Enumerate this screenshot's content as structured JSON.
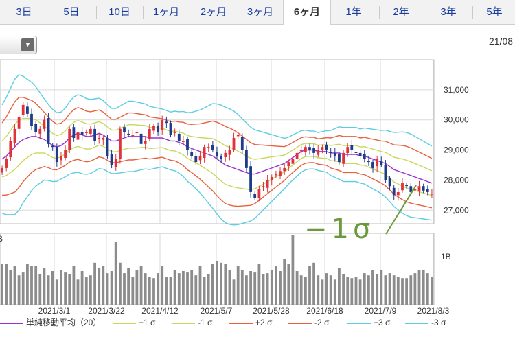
{
  "tabs": [
    {
      "label": "3日",
      "active": false
    },
    {
      "label": "5日",
      "active": false
    },
    {
      "label": "10日",
      "active": false
    },
    {
      "label": "1ヶ月",
      "active": false
    },
    {
      "label": "2ヶ月",
      "active": false
    },
    {
      "label": "3ヶ月",
      "active": false
    },
    {
      "label": "6ヶ月",
      "active": true
    },
    {
      "label": "1年",
      "active": false
    },
    {
      "label": "2年",
      "active": false
    },
    {
      "label": "3年",
      "active": false
    },
    {
      "label": "5年",
      "active": false
    }
  ],
  "header_date": "21/08",
  "annotation": "−1σ",
  "colors": {
    "up": "#e0323a",
    "down": "#1e3c8c",
    "sma": "#9b30d0",
    "sigma1": "#c9d85a",
    "sigma2": "#e8603c",
    "sigma3": "#5ccde0",
    "volume": "#8c8c8c",
    "annotation": "#6a9a3c"
  },
  "chart_data": {
    "type": "candlestick",
    "x_labels": [
      "2021/3/1",
      "2021/3/22",
      "2021/4/12",
      "2021/5/7",
      "2021/5/28",
      "2021/6/18",
      "2021/7/9",
      "2021/8/3"
    ],
    "y_ticks": [
      "31,000",
      "30,000",
      "29,000",
      "28,000",
      "27,000"
    ],
    "y_tick_values": [
      31000,
      30000,
      29000,
      28000,
      27000
    ],
    "ylim": [
      26550,
      32000
    ],
    "volume_tick": "1B",
    "volume_tick_top": "B",
    "legend": [
      {
        "label": "単純移動平均（20）",
        "color": "#9b30d0"
      },
      {
        "label": "+1 σ",
        "color": "#c9d85a"
      },
      {
        "label": "-1 σ",
        "color": "#c9d85a"
      },
      {
        "label": "+2 σ",
        "color": "#e8603c"
      },
      {
        "label": "-2 σ",
        "color": "#e8603c"
      },
      {
        "label": "+3 σ",
        "color": "#5ccde0"
      },
      {
        "label": "-3 σ",
        "color": "#5ccde0"
      }
    ],
    "close": [
      28400,
      28700,
      29300,
      29700,
      30100,
      30500,
      30200,
      29800,
      29600,
      29700,
      30000,
      29200,
      29100,
      28600,
      28800,
      29000,
      29700,
      29400,
      29600,
      29500,
      29600,
      29700,
      29300,
      29400,
      29400,
      28800,
      28500,
      28700,
      29700,
      29600,
      29500,
      29500,
      29600,
      29200,
      29300,
      29700,
      29800,
      29600,
      30000,
      29900,
      29500,
      29600,
      29300,
      29300,
      29000,
      28800,
      28600,
      28800,
      29100,
      29100,
      29000,
      28800,
      28700,
      28900,
      29000,
      29400,
      29500,
      29000,
      28400,
      27600,
      27400,
      27700,
      27800,
      28000,
      28100,
      28200,
      28300,
      28400,
      28600,
      28700,
      28900,
      29000,
      29100,
      29000,
      28900,
      29000,
      29100,
      29000,
      28900,
      28800,
      28600,
      28900,
      29100,
      29000,
      28900,
      28800,
      28700,
      28600,
      28400,
      28700,
      28500,
      28000,
      27800,
      27500,
      27600,
      27900,
      27800,
      27600,
      27700,
      27800,
      27650,
      27600,
      27550
    ],
    "sma": [
      28700,
      28800,
      28950,
      29100,
      29250,
      29350,
      29400,
      29450,
      29450,
      29400,
      29350,
      29250,
      29150,
      29100,
      29150,
      29250,
      29400,
      29500,
      29550,
      29500,
      29450,
      29450,
      29500,
      29550,
      29500,
      29400,
      29300,
      29300,
      29350,
      29400,
      29450,
      29450,
      29450,
      29450,
      29450,
      29400,
      29400,
      29400,
      29400,
      29350,
      29300,
      29300,
      29250,
      29200,
      29100,
      29050,
      29000,
      28950,
      28900,
      28850,
      28800,
      28700,
      28600,
      28500,
      28450,
      28400,
      28350,
      28300,
      28250,
      28200,
      28200,
      28250,
      28300,
      28350,
      28400,
      28450,
      28500,
      28550,
      28650,
      28750,
      28850,
      28950,
      29000,
      29000,
      29000,
      28950,
      28950,
      28950,
      28900,
      28900,
      28900,
      28850,
      28850,
      28850,
      28850,
      28800,
      28800,
      28750,
      28700,
      28650,
      28600,
      28550,
      28450,
      28350,
      28300,
      28250,
      28200,
      28150,
      28100,
      28050,
      28000,
      27950,
      27900
    ],
    "sigma": [
      600,
      650,
      700,
      750,
      750,
      700,
      650,
      600,
      550,
      500,
      450,
      420,
      400,
      380,
      370,
      380,
      400,
      420,
      430,
      430,
      420,
      410,
      400,
      390,
      380,
      370,
      360,
      360,
      370,
      380,
      390,
      390,
      380,
      370,
      360,
      350,
      340,
      330,
      320,
      320,
      320,
      330,
      340,
      360,
      380,
      400,
      430,
      460,
      500,
      540,
      580,
      610,
      630,
      640,
      640,
      630,
      610,
      580,
      550,
      520,
      490,
      460,
      430,
      400,
      370,
      340,
      310,
      280,
      260,
      250,
      240,
      230,
      220,
      210,
      210,
      210,
      220,
      230,
      250,
      270,
      290,
      300,
      300,
      300,
      300,
      300,
      310,
      320,
      330,
      340,
      350,
      370,
      390,
      410,
      430,
      450,
      460,
      460,
      450,
      440,
      430,
      420,
      410
    ],
    "volume": [
      0.58,
      0.58,
      0.5,
      0.55,
      0.42,
      0.46,
      0.58,
      0.55,
      0.55,
      0.44,
      0.52,
      0.42,
      0.48,
      0.36,
      0.5,
      0.46,
      0.44,
      0.55,
      0.36,
      0.48,
      0.4,
      0.42,
      0.6,
      0.53,
      0.55,
      0.45,
      0.48,
      0.9,
      0.6,
      0.45,
      0.52,
      0.4,
      0.5,
      0.55,
      0.45,
      0.4,
      0.38,
      0.45,
      0.55,
      0.4,
      0.4,
      0.5,
      0.45,
      0.48,
      0.46,
      0.5,
      0.42,
      0.55,
      0.4,
      0.44,
      0.58,
      0.62,
      0.6,
      0.58,
      0.5,
      0.36,
      0.55,
      0.5,
      0.42,
      0.48,
      0.46,
      0.58,
      0.44,
      0.45,
      0.5,
      0.55,
      0.48,
      0.65,
      0.58,
      1.0,
      0.48,
      0.42,
      0.4,
      0.55,
      0.6,
      0.42,
      0.36,
      0.45,
      0.42,
      0.36,
      0.52,
      0.44,
      0.4,
      0.38,
      0.4,
      0.36,
      0.45,
      0.42,
      0.5,
      0.44,
      0.5,
      0.42,
      0.45,
      0.42,
      0.4,
      0.38,
      0.38,
      0.42,
      0.45,
      0.5,
      0.5,
      0.45,
      0.4
    ]
  }
}
